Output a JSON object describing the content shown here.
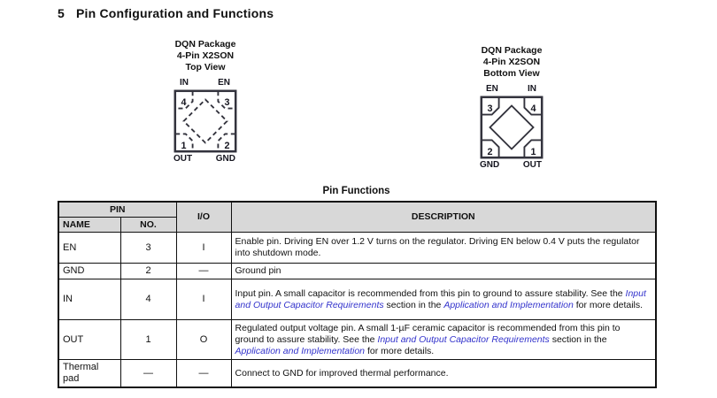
{
  "heading": {
    "number": "5",
    "text": "Pin Configuration and Functions"
  },
  "packages": {
    "top": {
      "title_lines": [
        "DQN Package",
        "4-Pin X2SON",
        "Top View"
      ],
      "top_labels": [
        "IN",
        "EN"
      ],
      "bottom_labels": [
        "OUT",
        "GND"
      ],
      "pin_numbers": {
        "tl": "4",
        "tr": "3",
        "bl": "1",
        "br": "2"
      }
    },
    "bottom": {
      "title_lines": [
        "DQN Package",
        "4-Pin X2SON",
        "Bottom View"
      ],
      "top_labels": [
        "EN",
        "IN"
      ],
      "bottom_labels": [
        "GND",
        "OUT"
      ],
      "pin_numbers": {
        "tl": "3",
        "tr": "4",
        "bl": "2",
        "br": "1"
      }
    }
  },
  "table": {
    "title": "Pin Functions",
    "headers": {
      "pin_group": "PIN",
      "name": "NAME",
      "no": "NO.",
      "io": "I/O",
      "description": "DESCRIPTION"
    },
    "rows": [
      {
        "key": "en",
        "name": "EN",
        "no": "3",
        "io": "I",
        "description": [
          {
            "text": "Enable pin. Driving EN over 1.2 V turns on the regulator. Driving EN below 0.4 V puts the regulator into shutdown mode.",
            "link": false
          }
        ]
      },
      {
        "key": "gnd",
        "name": "GND",
        "no": "2",
        "io": "—",
        "description": [
          {
            "text": "Ground pin",
            "link": false
          }
        ]
      },
      {
        "key": "in",
        "name": "IN",
        "no": "4",
        "io": "I",
        "description": [
          {
            "text": "Input pin. A small capacitor is recommended from this pin to ground to assure stability. See the ",
            "link": false
          },
          {
            "text": "Input and Output Capacitor Requirements",
            "link": true
          },
          {
            "text": " section in the ",
            "link": false
          },
          {
            "text": "Application and Implementation",
            "link": true
          },
          {
            "text": " for more details.",
            "link": false
          }
        ]
      },
      {
        "key": "out",
        "name": "OUT",
        "no": "1",
        "io": "O",
        "description": [
          {
            "text": "Regulated output voltage pin. A small 1-µF ceramic capacitor is recommended from this pin to ground to assure stability. See the ",
            "link": false
          },
          {
            "text": "Input and Output Capacitor Requirements",
            "link": true
          },
          {
            "text": " section in the ",
            "link": false
          },
          {
            "text": "Application and Implementation",
            "link": true
          },
          {
            "text": " for more details.",
            "link": false
          }
        ]
      },
      {
        "key": "thermal",
        "name": "Thermal pad",
        "no": "—",
        "io": "—",
        "description": [
          {
            "text": "Connect to GND for improved thermal performance.",
            "link": false
          }
        ]
      }
    ]
  },
  "colors": {
    "header_bg": "#d8d8d8",
    "link_blue": "#3333cc",
    "text": "#111111",
    "border": "#111111",
    "diagram_stroke": "#33333d"
  }
}
